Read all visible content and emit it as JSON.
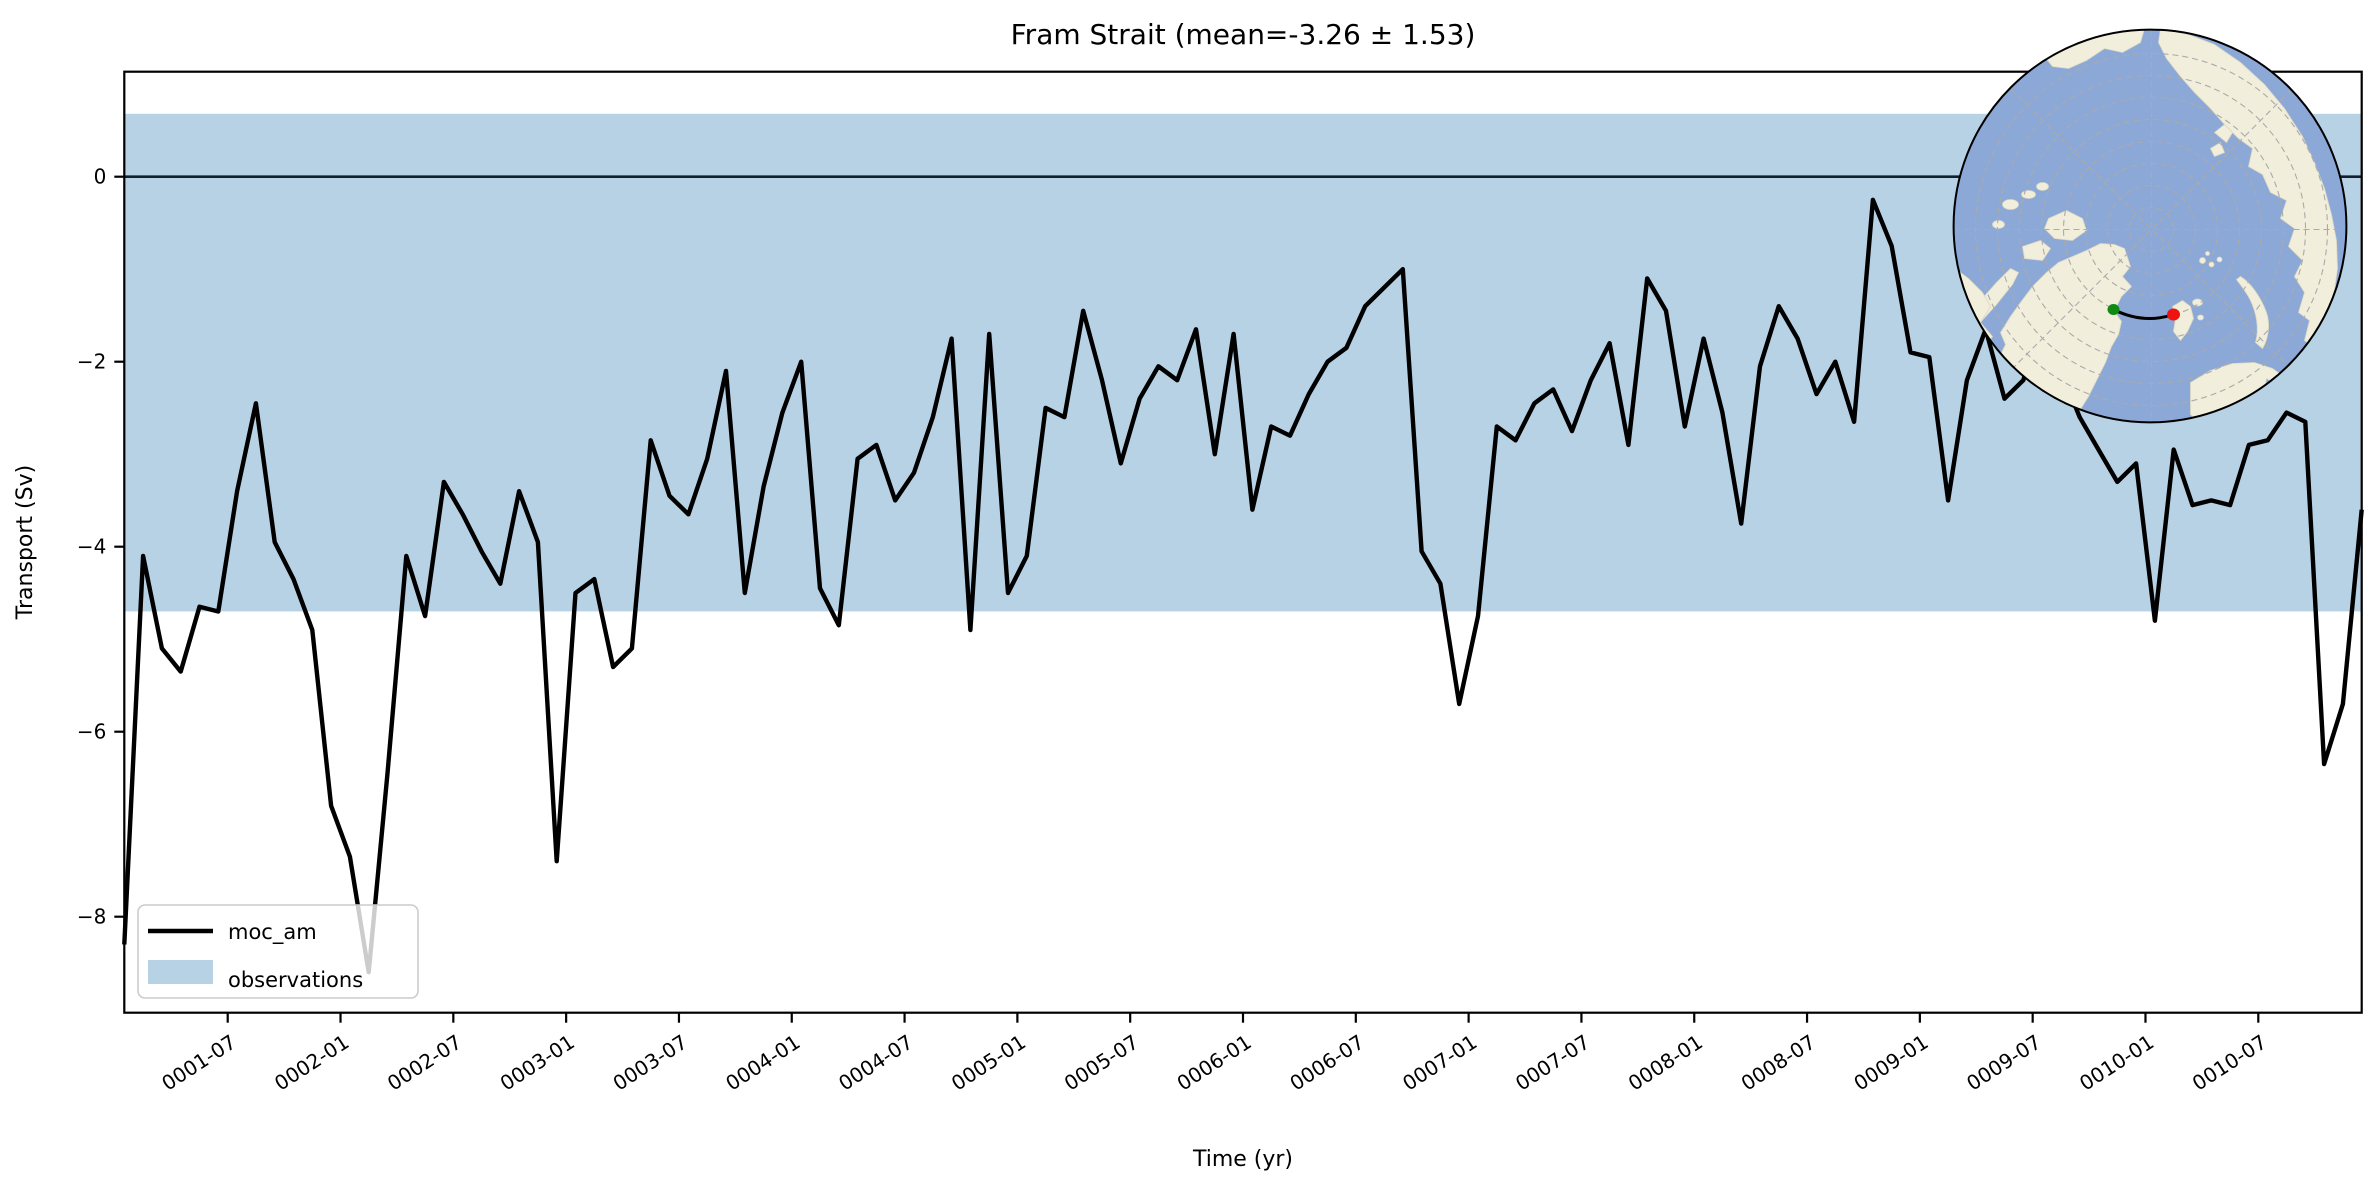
{
  "title": "Fram Strait (mean=-3.26 ± 1.53)",
  "axes": {
    "xlabel": "Time (yr)",
    "ylabel": "Transport (Sv)"
  },
  "legend": {
    "items": [
      {
        "label": "moc_am",
        "type": "line"
      },
      {
        "label": "observations",
        "type": "patch"
      }
    ]
  },
  "colors": {
    "series_line": "#000000",
    "observations_band": "#b7d1e5",
    "zero_line": "#10202e",
    "spine": "#000000",
    "legend_bg": "#ffffff",
    "legend_border": "#cccccc",
    "map_ocean": "#8ca8d7",
    "map_land": "#f1eedb",
    "map_land_edge": "#ddd8c2",
    "map_graticule": "#aaaaaa",
    "map_border": "#000000",
    "map_transect": "#000000",
    "start_marker": "#0f8a12",
    "end_marker": "#f01310"
  },
  "chart_data": {
    "type": "line",
    "title": "Fram Strait (mean=-3.26 ± 1.53)",
    "xlabel": "Time (yr)",
    "ylabel": "Transport (Sv)",
    "x_start": "0001-01",
    "x_end": "0010-12",
    "x_freq": "monthly",
    "ylim": [
      -9.05,
      1.14
    ],
    "grid": false,
    "legend_position": "lower left",
    "zero_line": 0,
    "band": {
      "label": "observations",
      "ymin": -4.7,
      "ymax": 0.68
    },
    "x_tick_labels": [
      "0001-07",
      "0002-01",
      "0002-07",
      "0003-01",
      "0003-07",
      "0004-01",
      "0004-07",
      "0005-01",
      "0005-07",
      "0006-01",
      "0006-07",
      "0007-01",
      "0007-07",
      "0008-01",
      "0008-07",
      "0009-01",
      "0009-07",
      "0010-01",
      "0010-07"
    ],
    "y_ticks": [
      0,
      -2,
      -4,
      -6,
      -8
    ],
    "y_tick_labels": [
      "0",
      "−2",
      "−4",
      "−6",
      "−8"
    ],
    "series": [
      {
        "name": "moc_am",
        "values": [
          -8.3,
          -4.1,
          -5.1,
          -5.35,
          -4.65,
          -4.7,
          -3.4,
          -2.45,
          -3.95,
          -4.35,
          -4.9,
          -6.8,
          -7.35,
          -8.6,
          -6.45,
          -4.1,
          -4.75,
          -3.3,
          -3.65,
          -4.05,
          -4.4,
          -3.4,
          -3.95,
          -7.4,
          -4.5,
          -4.35,
          -5.3,
          -5.1,
          -2.85,
          -3.45,
          -3.65,
          -3.05,
          -2.1,
          -4.5,
          -3.35,
          -2.55,
          -2.0,
          -4.45,
          -4.85,
          -3.05,
          -2.9,
          -3.5,
          -3.2,
          -2.6,
          -1.75,
          -4.9,
          -1.7,
          -4.5,
          -4.1,
          -2.5,
          -2.6,
          -1.45,
          -2.2,
          -3.1,
          -2.4,
          -2.05,
          -2.2,
          -1.65,
          -3.0,
          -1.7,
          -3.6,
          -2.7,
          -2.8,
          -2.35,
          -2.0,
          -1.85,
          -1.4,
          -1.2,
          -1.0,
          -4.05,
          -4.4,
          -5.7,
          -4.75,
          -2.7,
          -2.85,
          -2.45,
          -2.3,
          -2.75,
          -2.2,
          -1.8,
          -2.9,
          -1.1,
          -1.45,
          -2.7,
          -1.75,
          -2.55,
          -3.75,
          -2.05,
          -1.4,
          -1.75,
          -2.35,
          -2.0,
          -2.65,
          -0.25,
          -0.75,
          -1.9,
          -1.95,
          -3.5,
          -2.2,
          -1.65,
          -2.4,
          -2.2,
          -1.55,
          -2.1,
          -2.6,
          -2.95,
          -3.3,
          -3.1,
          -4.8,
          -2.95,
          -3.55,
          -3.5,
          -3.55,
          -2.9,
          -2.85,
          -2.55,
          -2.65,
          -6.35,
          -5.7,
          -3.6
        ]
      }
    ]
  }
}
